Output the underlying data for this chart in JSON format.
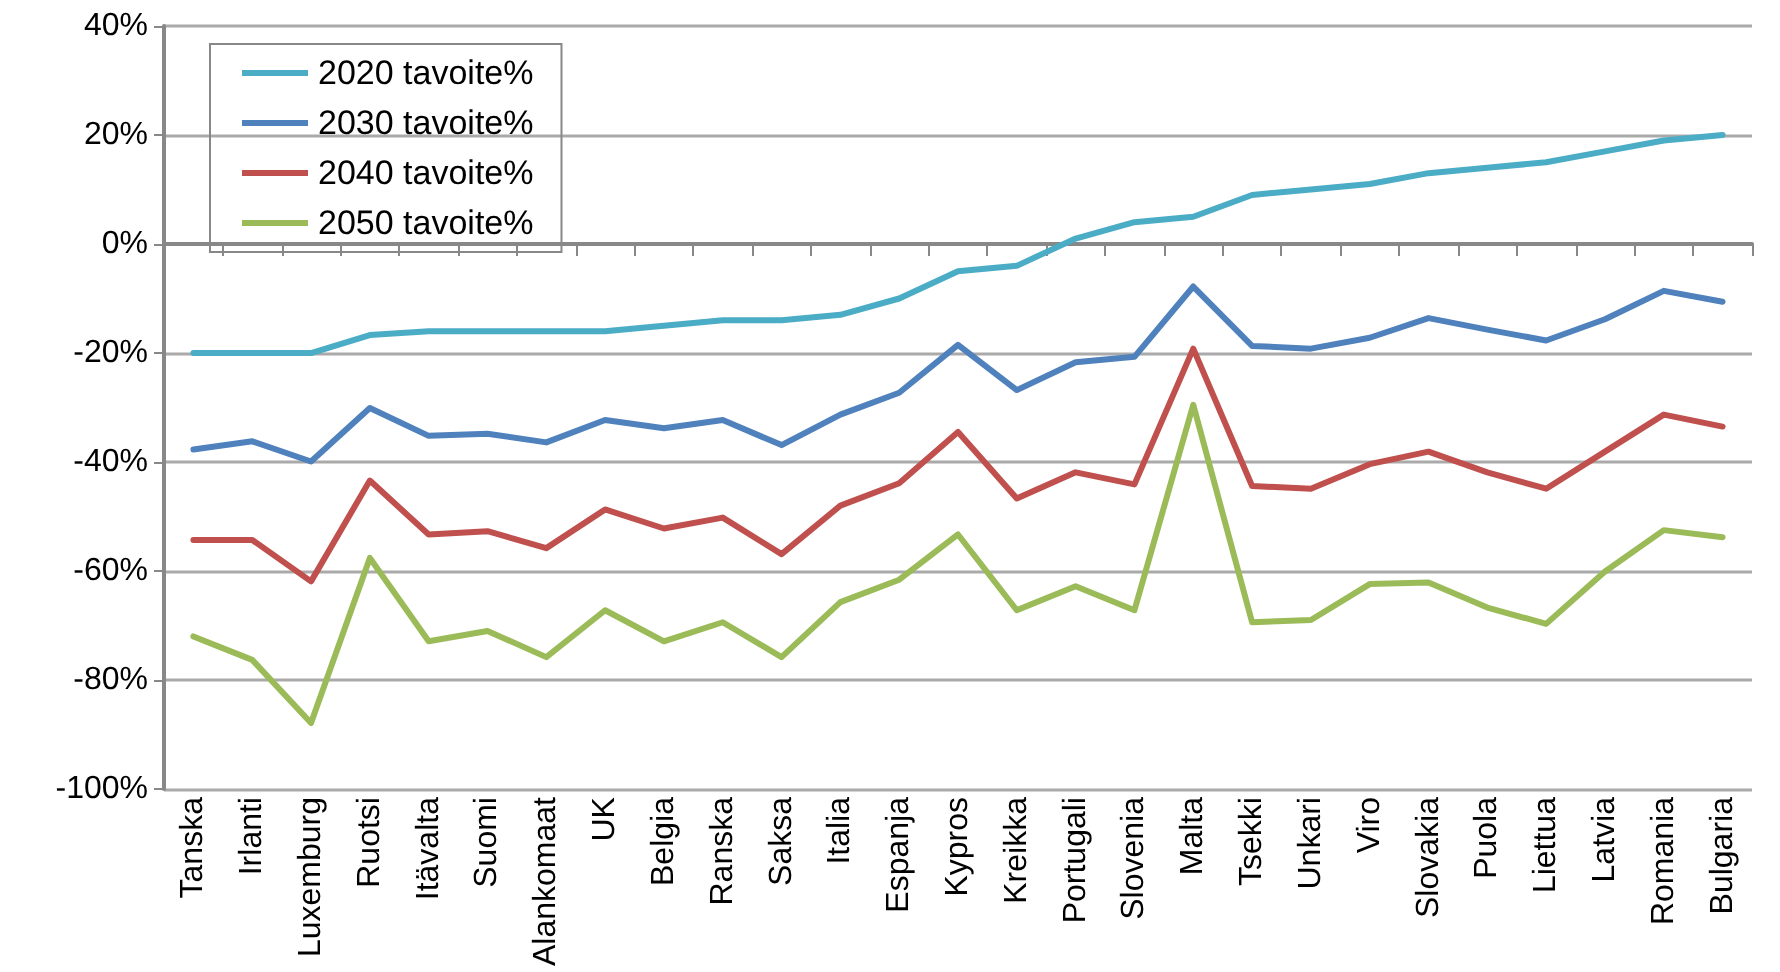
{
  "chart_data": {
    "type": "line",
    "categories": [
      "Tanska",
      "Irlanti",
      "Luxemburg",
      "Ruotsi",
      "Itävalta",
      "Suomi",
      "Alankomaat",
      "UK",
      "Belgia",
      "Ranska",
      "Saksa",
      "Italia",
      "Espanja",
      "Kypros",
      "Kreikka",
      "Portugali",
      "Slovenia",
      "Malta",
      "Tsekki",
      "Unkari",
      "Viro",
      "Slovakia",
      "Puola",
      "Liettua",
      "Latvia",
      "Romania",
      "Bulgaria"
    ],
    "series": [
      {
        "name": "2020 tavoite%",
        "color": "#4bacc6",
        "values": [
          -20,
          -20,
          -20,
          -16.7,
          -16,
          -16,
          -16,
          -16,
          -15,
          -14,
          -14,
          -13,
          -10,
          -5,
          -4,
          1,
          4,
          5,
          9,
          10,
          11,
          13,
          14,
          15,
          17,
          19,
          20
        ]
      },
      {
        "name": "2030 tavoite%",
        "color": "#4f81bd",
        "values": [
          -37.7,
          -36.2,
          -39.9,
          -30.1,
          -35.2,
          -34.8,
          -36.4,
          -32.3,
          -33.8,
          -32.3,
          -36.9,
          -31.3,
          -27.3,
          -18.5,
          -26.8,
          -21.7,
          -20.7,
          -7.8,
          -18.7,
          -19.2,
          -17.2,
          -13.6,
          -15.7,
          -17.7,
          -13.8,
          -8.6,
          -10.6
        ]
      },
      {
        "name": "2040 tavoite%",
        "color": "#c0504d",
        "values": [
          -54.3,
          -54.3,
          -61.9,
          -43.4,
          -53.3,
          -52.7,
          -55.8,
          -48.7,
          -52.2,
          -50.2,
          -56.9,
          -48,
          -43.9,
          -34.5,
          -46.7,
          -41.9,
          -44.1,
          -19.2,
          -44.4,
          -44.9,
          -40.4,
          -38.1,
          -41.9,
          -44.9,
          -38.1,
          -31.3,
          -33.5
        ]
      },
      {
        "name": "2050 tavoite%",
        "color": "#9bbb59",
        "values": [
          -72,
          -76.3,
          -87.9,
          -57.6,
          -72.9,
          -71,
          -75.8,
          -67.2,
          -72.9,
          -69.4,
          -75.8,
          -65.7,
          -61.6,
          -53.3,
          -67.2,
          -62.8,
          -67.2,
          -29.5,
          -69.4,
          -69,
          -62.4,
          -62.1,
          -66.7,
          -69.7,
          -60.1,
          -52.5,
          -53.8
        ]
      }
    ],
    "ylim": [
      -100,
      40
    ],
    "yticks": [
      {
        "value": -100,
        "label": "-100%"
      },
      {
        "value": -80,
        "label": "-80%"
      },
      {
        "value": -60,
        "label": "-60%"
      },
      {
        "value": -40,
        "label": "-40%"
      },
      {
        "value": -20,
        "label": "-20%"
      },
      {
        "value": 0,
        "label": "0%"
      },
      {
        "value": 20,
        "label": "20%"
      },
      {
        "value": 40,
        "label": "40%"
      }
    ],
    "grid": "y",
    "legend": "top left",
    "marker": "none",
    "line_style": "solid"
  }
}
